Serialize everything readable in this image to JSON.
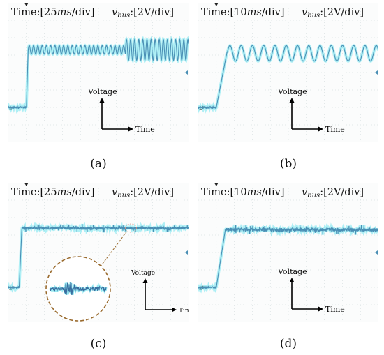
{
  "panels": [
    {
      "id": "a",
      "caption": "(a)",
      "time_label": "Time:[25ms/div]",
      "time_prefix": "Time:[25",
      "time_unit": "ms",
      "time_suffix": "/div]",
      "vbus_label": "vbus:[2V/div]",
      "vbus_unit_text": ":[2V/div]",
      "axis_labels": {
        "y": "Voltage",
        "x": "Time"
      },
      "ground_marker": "2",
      "chart_data": {
        "type": "line",
        "title": "",
        "xlabel": "Time",
        "ylabel": "Voltage",
        "x_unit_per_div": "25 ms",
        "y_unit_per_div": "2 V",
        "xlim_div": [
          0,
          10
        ],
        "ylim_div": [
          0,
          8
        ],
        "baseline_div": 2.0,
        "series": [
          {
            "segments": [
              {
                "t_start_div": 0,
                "t_end_div": 1.0,
                "level_div": 2.0,
                "ripple_div": 0.05
              },
              {
                "t_start_div": 1.0,
                "t_end_div": 1.1,
                "ramp_to_div": 5.3
              },
              {
                "t_start_div": 1.1,
                "t_end_div": 6.5,
                "level_div": 5.3,
                "ripple_div": 0.25,
                "freq_per_div": 4.2
              },
              {
                "t_start_div": 6.5,
                "t_end_div": 10,
                "level_div": 5.3,
                "ripple_div": 0.6,
                "freq_per_div": 4.4
              }
            ]
          }
        ]
      }
    },
    {
      "id": "b",
      "caption": "(b)",
      "time_label": "Time:[10ms/div]",
      "time_prefix": "Time:[10",
      "time_unit": "ms",
      "time_suffix": "/div]",
      "vbus_label": "vbus:[2V/div]",
      "vbus_unit_text": ":[2V/div]",
      "axis_labels": {
        "y": "Voltage",
        "x": "Time"
      },
      "ground_marker": "2",
      "chart_data": {
        "type": "line",
        "title": "",
        "xlabel": "Time",
        "ylabel": "Voltage",
        "x_unit_per_div": "10 ms",
        "y_unit_per_div": "2 V",
        "xlim_div": [
          0,
          10
        ],
        "ylim_div": [
          0,
          8
        ],
        "baseline_div": 2.0,
        "series": [
          {
            "segments": [
              {
                "t_start_div": 0,
                "t_end_div": 1.0,
                "level_div": 2.0,
                "ripple_div": 0.05
              },
              {
                "t_start_div": 1.0,
                "t_end_div": 1.6,
                "ramp_to_div": 5.2
              },
              {
                "t_start_div": 1.6,
                "t_end_div": 10,
                "level_div": 5.1,
                "ripple_div": 0.45,
                "freq_per_div": 1.6
              }
            ]
          }
        ]
      }
    },
    {
      "id": "c",
      "caption": "(c)",
      "time_label": "Time:[25ms/div]",
      "time_prefix": "Time:[25",
      "time_unit": "ms",
      "time_suffix": "/div]",
      "vbus_label": "vbus:[2V/div]",
      "vbus_unit_text": ":[2V/div]",
      "axis_labels": {
        "y": "Voltage",
        "x": "Time"
      },
      "ground_marker": "2",
      "chart_data": {
        "type": "line",
        "title": "",
        "xlabel": "Time",
        "ylabel": "Voltage",
        "x_unit_per_div": "25 ms",
        "y_unit_per_div": "2 V",
        "xlim_div": [
          0,
          10
        ],
        "ylim_div": [
          0,
          8
        ],
        "baseline_div": 2.0,
        "series": [
          {
            "segments": [
              {
                "t_start_div": 0,
                "t_end_div": 0.6,
                "level_div": 2.0,
                "ripple_div": 0.05
              },
              {
                "t_start_div": 0.6,
                "t_end_div": 0.75,
                "ramp_to_div": 5.4
              },
              {
                "t_start_div": 0.75,
                "t_end_div": 10,
                "level_div": 5.4,
                "ripple_div": 0.08,
                "noise": true
              }
            ]
          }
        ],
        "annotations": [
          {
            "type": "zoom-inset",
            "target_t_div": 6.8
          }
        ]
      }
    },
    {
      "id": "d",
      "caption": "(d)",
      "time_label": "Time:[10ms/div]",
      "time_prefix": "Time:[10",
      "time_unit": "ms",
      "time_suffix": "/div]",
      "vbus_label": "vbus:[2V/div]",
      "vbus_unit_text": ":[2V/div]",
      "axis_labels": {
        "y": "Voltage",
        "x": "Time"
      },
      "ground_marker": "2",
      "chart_data": {
        "type": "line",
        "title": "",
        "xlabel": "Time",
        "ylabel": "Voltage",
        "x_unit_per_div": "10 ms",
        "y_unit_per_div": "2 V",
        "xlim_div": [
          0,
          10
        ],
        "ylim_div": [
          0,
          8
        ],
        "baseline_div": 2.0,
        "series": [
          {
            "segments": [
              {
                "t_start_div": 0,
                "t_end_div": 1.0,
                "level_div": 2.0,
                "ripple_div": 0.05
              },
              {
                "t_start_div": 1.0,
                "t_end_div": 1.5,
                "ramp_to_div": 5.3
              },
              {
                "t_start_div": 1.5,
                "t_end_div": 10,
                "level_div": 5.3,
                "ripple_div": 0.1,
                "noise": true
              }
            ]
          }
        ]
      }
    }
  ],
  "colors": {
    "trace": "#4a8fb5",
    "trace_glow": "#6fe3ee",
    "grid": "#c9d3d6",
    "text": "#111111",
    "inset_border": "#9a6b2e",
    "zoom_marker": "#d88b7a"
  }
}
